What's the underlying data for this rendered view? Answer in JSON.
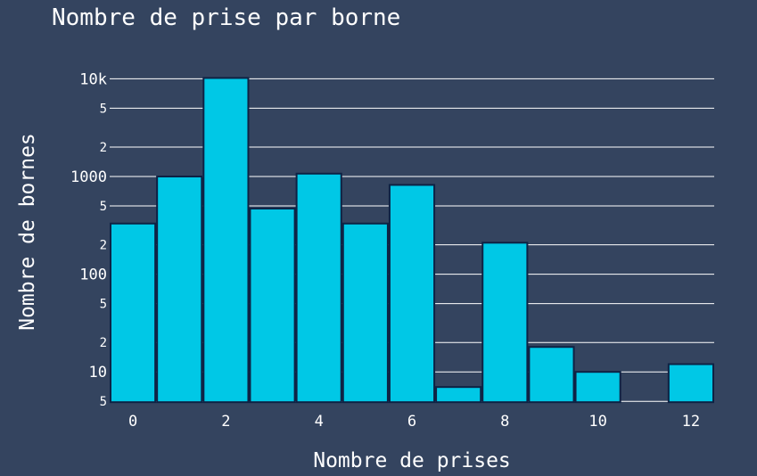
{
  "chart_data": {
    "type": "bar",
    "title": "Nombre de prise par borne",
    "xlabel": "Nombre de prises",
    "ylabel": "Nombre de bornes",
    "yscale": "log",
    "ylim": [
      5,
      10500
    ],
    "grid": true,
    "colors": {
      "background": "#34445f",
      "bar": "#00c8e6",
      "bar_outline": "#0e2244",
      "grid": "#ffffff",
      "text": "#ffffff"
    },
    "x": [
      0,
      1,
      2,
      3,
      4,
      5,
      6,
      7,
      8,
      9,
      10,
      11,
      12
    ],
    "values": [
      330,
      1000,
      10200,
      470,
      1070,
      330,
      820,
      7,
      210,
      18,
      10,
      0,
      12
    ],
    "x_ticks": [
      "0",
      "2",
      "4",
      "6",
      "8",
      "10",
      "12"
    ],
    "y_ticks": [
      "5",
      "10",
      "2",
      "5",
      "100",
      "2",
      "5",
      "1000",
      "2",
      "5",
      "10k"
    ]
  }
}
